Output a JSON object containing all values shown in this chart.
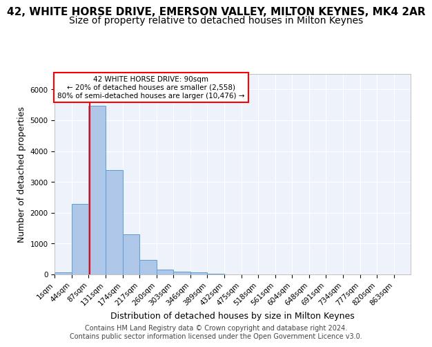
{
  "title": "42, WHITE HORSE DRIVE, EMERSON VALLEY, MILTON KEYNES, MK4 2AR",
  "subtitle": "Size of property relative to detached houses in Milton Keynes",
  "xlabel": "Distribution of detached houses by size in Milton Keynes",
  "ylabel": "Number of detached properties",
  "footer_line1": "Contains HM Land Registry data © Crown copyright and database right 2024.",
  "footer_line2": "Contains public sector information licensed under the Open Government Licence v3.0.",
  "bin_labels": [
    "1sqm",
    "44sqm",
    "87sqm",
    "131sqm",
    "174sqm",
    "217sqm",
    "260sqm",
    "303sqm",
    "346sqm",
    "389sqm",
    "432sqm",
    "475sqm",
    "518sqm",
    "561sqm",
    "604sqm",
    "648sqm",
    "691sqm",
    "734sqm",
    "777sqm",
    "820sqm",
    "863sqm"
  ],
  "bar_values": [
    75,
    2280,
    5470,
    3380,
    1310,
    480,
    165,
    90,
    60,
    30,
    0,
    0,
    0,
    0,
    0,
    0,
    0,
    0,
    0,
    0,
    0
  ],
  "bar_color": "#aec6e8",
  "bar_edge_color": "#5a9fd4",
  "annotation_box_text": "42 WHITE HORSE DRIVE: 90sqm\n← 20% of detached houses are smaller (2,558)\n80% of semi-detached houses are larger (10,476) →",
  "annotation_box_color": "white",
  "annotation_box_edge_color": "red",
  "vline_x": 90,
  "vline_color": "red",
  "ylim": [
    0,
    6500
  ],
  "bin_width": 43,
  "background_color": "#eef2fa",
  "grid_color": "white",
  "title_fontsize": 11,
  "subtitle_fontsize": 10,
  "axis_fontsize": 9,
  "tick_fontsize": 7.5,
  "footer_fontsize": 7
}
